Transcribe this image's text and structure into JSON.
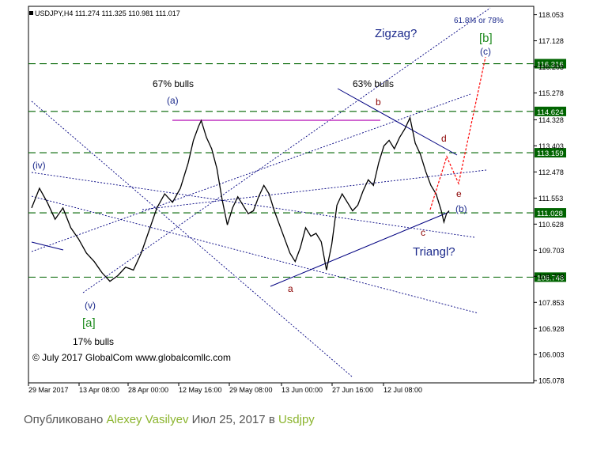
{
  "chart_data": {
    "type": "line",
    "header": "USDJPY,H4  111.274 111.325 110.981 111.017",
    "symbol": "USDJPY",
    "timeframe": "H4",
    "ohlc": {
      "open": 111.274,
      "high": 111.325,
      "low": 110.981,
      "close": 111.017
    },
    "copyright": "© July 2017 GlobalCom www.globalcomllc.com",
    "ylim": [
      105.0,
      118.35
    ],
    "y_ticks": [
      "118.053",
      "117.128",
      "116.203",
      "115.278",
      "114.328",
      "113.403",
      "112.478",
      "111.553",
      "110.628",
      "109.703",
      "108.778",
      "107.853",
      "106.928",
      "106.003",
      "105.078"
    ],
    "x_ticks": [
      "29 Mar 2017",
      "13 Apr 08:00",
      "28 Apr 00:00",
      "12 May 16:00",
      "29 May 08:00",
      "13 Jun 00:00",
      "27 Jun 16:00",
      "12 Jul 08:00"
    ],
    "levels": [
      {
        "value": 116.316,
        "label": "116.316"
      },
      {
        "value": 114.624,
        "label": "114.624"
      },
      {
        "value": 113.159,
        "label": "113.159"
      },
      {
        "value": 111.028,
        "label": "111.028"
      },
      {
        "value": 108.748,
        "label": "108.748"
      }
    ],
    "price_series": [
      [
        0,
        111.2
      ],
      [
        3,
        111.9
      ],
      [
        6,
        111.4
      ],
      [
        9,
        110.8
      ],
      [
        12,
        111.2
      ],
      [
        15,
        110.5
      ],
      [
        18,
        110.1
      ],
      [
        21,
        109.6
      ],
      [
        24,
        109.3
      ],
      [
        27,
        108.9
      ],
      [
        30,
        108.6
      ],
      [
        33,
        108.8
      ],
      [
        36,
        109.1
      ],
      [
        39,
        109.0
      ],
      [
        42,
        109.6
      ],
      [
        45,
        110.4
      ],
      [
        48,
        111.2
      ],
      [
        51,
        111.7
      ],
      [
        54,
        111.4
      ],
      [
        57,
        111.9
      ],
      [
        60,
        112.8
      ],
      [
        62,
        113.6
      ],
      [
        64,
        114.1
      ],
      [
        65,
        114.3
      ],
      [
        67,
        113.7
      ],
      [
        69,
        113.3
      ],
      [
        71,
        112.6
      ],
      [
        73,
        111.5
      ],
      [
        75,
        110.6
      ],
      [
        77,
        111.2
      ],
      [
        79,
        111.6
      ],
      [
        81,
        111.3
      ],
      [
        83,
        111.0
      ],
      [
        85,
        111.1
      ],
      [
        87,
        111.6
      ],
      [
        89,
        112.0
      ],
      [
        91,
        111.7
      ],
      [
        93,
        111.1
      ],
      [
        95,
        110.6
      ],
      [
        97,
        110.1
      ],
      [
        99,
        109.6
      ],
      [
        101,
        109.3
      ],
      [
        103,
        109.8
      ],
      [
        105,
        110.5
      ],
      [
        107,
        110.2
      ],
      [
        109,
        110.3
      ],
      [
        111,
        110.0
      ],
      [
        113,
        109.0
      ],
      [
        115,
        109.9
      ],
      [
        117,
        111.3
      ],
      [
        119,
        111.7
      ],
      [
        121,
        111.4
      ],
      [
        123,
        111.1
      ],
      [
        125,
        111.3
      ],
      [
        127,
        111.8
      ],
      [
        129,
        112.2
      ],
      [
        131,
        112.0
      ],
      [
        133,
        112.8
      ],
      [
        135,
        113.4
      ],
      [
        137,
        113.6
      ],
      [
        139,
        113.3
      ],
      [
        141,
        113.7
      ],
      [
        143,
        114.0
      ],
      [
        145,
        114.4
      ],
      [
        147,
        113.5
      ],
      [
        149,
        113.1
      ],
      [
        151,
        112.5
      ],
      [
        153,
        112.0
      ],
      [
        155,
        111.7
      ],
      [
        157,
        111.1
      ],
      [
        158,
        110.7
      ],
      [
        159,
        111.0
      ],
      [
        160,
        111.1
      ]
    ],
    "annotations": [
      {
        "text": "Zigzag?",
        "color": "#1c2a8c"
      },
      {
        "text": "61.8% or 78%",
        "color": "#1c2a8c"
      },
      {
        "text": "[b]",
        "color": "#1e8a1e"
      },
      {
        "text": "(c)",
        "color": "#1c2a8c"
      },
      {
        "text": "67% bulls",
        "color": "#000000"
      },
      {
        "text": "(a)",
        "color": "#1c2a8c"
      },
      {
        "text": "63% bulls",
        "color": "#000000"
      },
      {
        "text": "b",
        "color": "#8b0000"
      },
      {
        "text": "d",
        "color": "#8b0000"
      },
      {
        "text": "e",
        "color": "#8b0000"
      },
      {
        "text": "(b)",
        "color": "#1c2a8c"
      },
      {
        "text": "c",
        "color": "#8b0000"
      },
      {
        "text": "Triangl?",
        "color": "#1c2a8c"
      },
      {
        "text": "a",
        "color": "#8b0000"
      },
      {
        "text": "(iv)",
        "color": "#1c2a8c"
      },
      {
        "text": "(v)",
        "color": "#1c2a8c"
      },
      {
        "text": "[a]",
        "color": "#1e8a1e"
      },
      {
        "text": "17% bulls",
        "color": "#000000"
      }
    ],
    "grid": false,
    "colors": {
      "price": "#000000",
      "levels": "#006400",
      "label_bg": "#006400",
      "channel": "#000080",
      "ab_line": "#b000b0",
      "projection": "#ff0000"
    }
  },
  "footer": {
    "prefix": "Опубликовано ",
    "author": "Alexey Vasilyev",
    "date": " Июл 25, 2017 в ",
    "tag": "Usdjpy"
  }
}
